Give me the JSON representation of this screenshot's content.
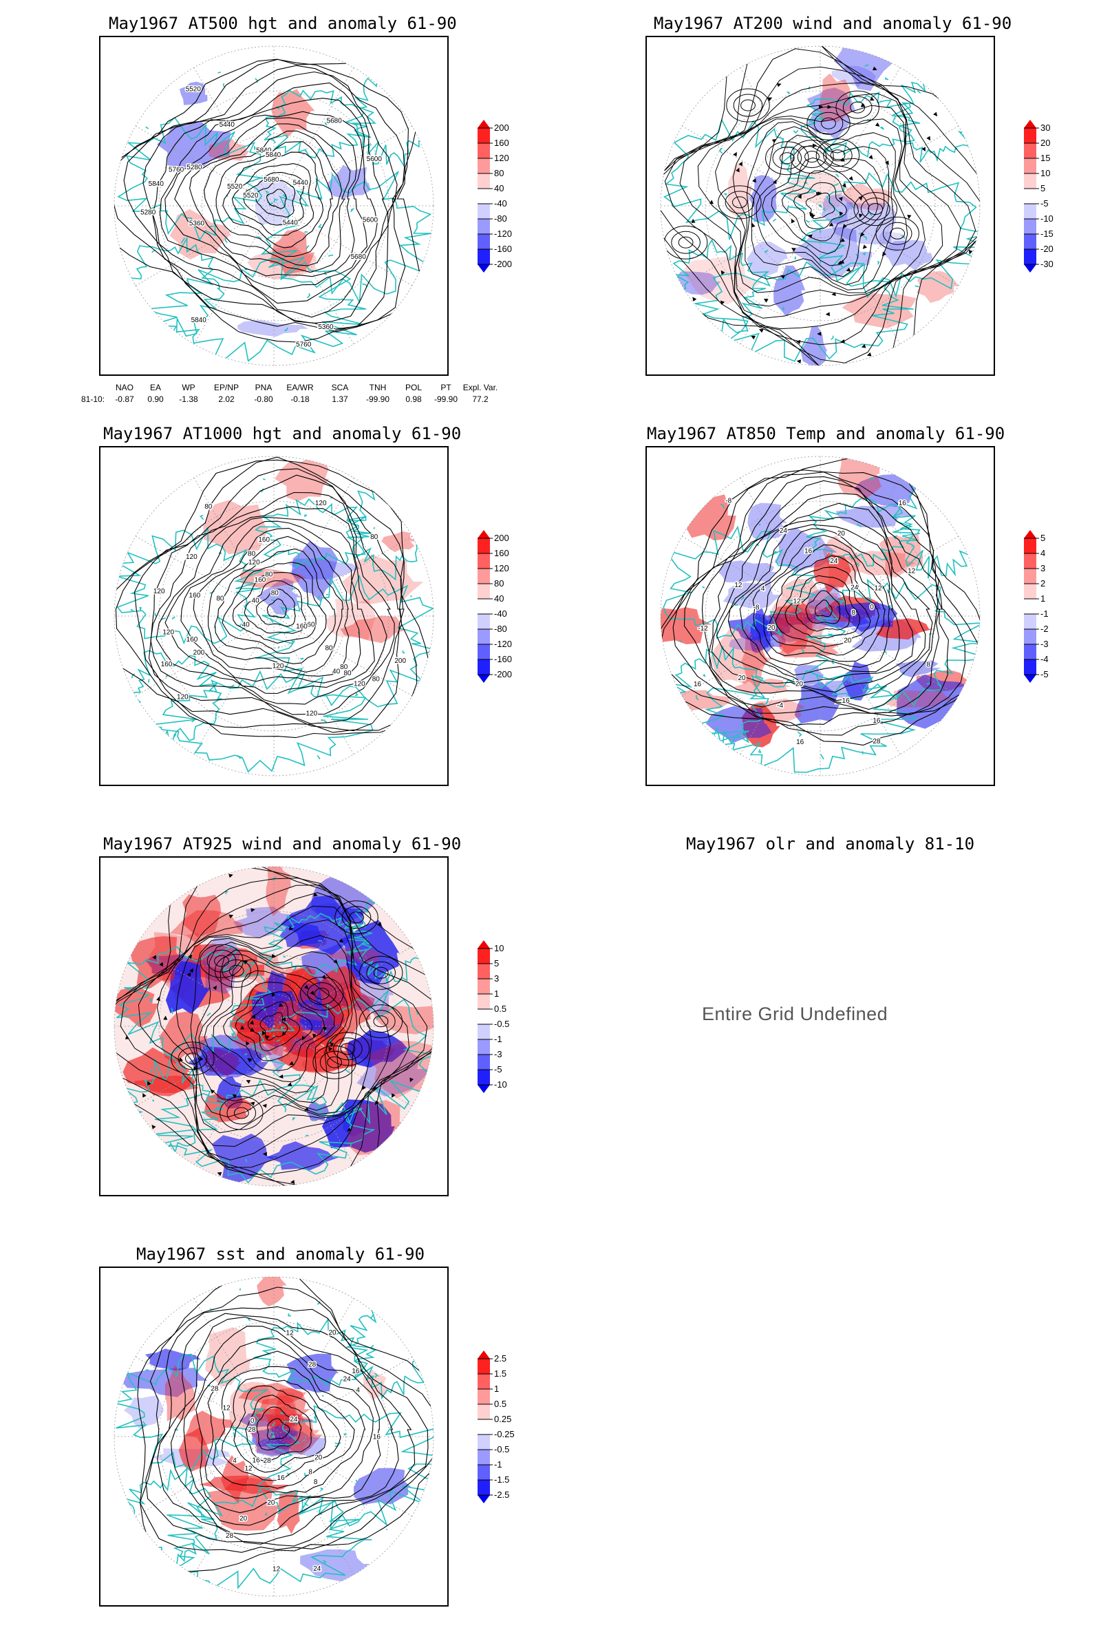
{
  "panels": [
    {
      "id": "p500",
      "title": "May1967 AT500 hgt and anomaly 61-90",
      "contours": [
        "5840",
        "5760",
        "5680",
        "5600",
        "5520",
        "5520",
        "5440",
        "5360",
        "5280",
        "5440",
        "5280",
        "5360",
        "5680",
        "5440",
        "5520",
        "5600",
        "5680",
        "5760",
        "5840",
        "5840",
        "5840"
      ],
      "colorbar": [
        "200",
        "160",
        "120",
        "80",
        "40",
        "-40",
        "-80",
        "-120",
        "-160",
        "-200"
      ]
    },
    {
      "id": "p200",
      "title": "May1967 AT200 wind and anomaly 61-90",
      "colorbar": [
        "30",
        "20",
        "15",
        "10",
        "5",
        "-5",
        "-10",
        "-15",
        "-20",
        "-30"
      ]
    },
    {
      "id": "p1000",
      "title": "May1967 AT1000 hgt and anomaly 61-90",
      "contours": [
        "80",
        "120",
        "120",
        "160",
        "160",
        "160",
        "200",
        "120",
        "80",
        "120",
        "80",
        "120",
        "160",
        "160",
        "40",
        "80",
        "120",
        "160",
        "80",
        "80",
        "40",
        "80",
        "120",
        "200",
        "160",
        "120",
        "80",
        "120",
        "40",
        "80",
        "80"
      ],
      "colorbar": [
        "200",
        "160",
        "120",
        "80",
        "40",
        "-40",
        "-80",
        "-120",
        "-160",
        "-200"
      ]
    },
    {
      "id": "p850",
      "title": "May1967 AT850 Temp and anomaly 61-90",
      "contours": [
        "16",
        "12",
        "8",
        "4",
        "0",
        "-4",
        "-8",
        "-12",
        "16",
        "20",
        "16",
        "12",
        "16",
        "20",
        "24",
        "-8",
        "12",
        "8",
        "12",
        "16",
        "20",
        "24",
        "28",
        "20",
        "24",
        "20",
        "16"
      ],
      "colorbar": [
        "5",
        "4",
        "3",
        "2",
        "1",
        "-1",
        "-2",
        "-3",
        "-4",
        "-5"
      ]
    },
    {
      "id": "p925",
      "title": "May1967 AT925 wind and anomaly 61-90",
      "colorbar": [
        "10",
        "5",
        "3",
        "1",
        "0.5",
        "-0.5",
        "-1",
        "-3",
        "-5",
        "-10"
      ]
    },
    {
      "id": "polr",
      "title": "May1967 olr and anomaly 81-10",
      "message": "Entire Grid Undefined"
    },
    {
      "id": "psst",
      "title": "May1967 sst and anomaly 61-90",
      "contours": [
        "28",
        "28",
        "24",
        "24",
        "20",
        "20",
        "16",
        "12",
        "8",
        "12",
        "16",
        "4",
        "0",
        "12",
        "16",
        "20",
        "8",
        "4",
        "12",
        "16",
        "20",
        "24",
        "28",
        "28",
        "28"
      ],
      "colorbar": [
        "2.5",
        "1.5",
        "1",
        "0.5",
        "0.25",
        "-0.25",
        "-0.5",
        "-1",
        "-1.5",
        "-2.5"
      ]
    }
  ],
  "indices": {
    "headers": [
      "NAO",
      "EA",
      "WP",
      "EP/NP",
      "PNA",
      "EA/WR",
      "SCA",
      "TNH",
      "POL",
      "PT",
      "Expl. Var."
    ],
    "row_label": "81-10:",
    "values": [
      "-0.87",
      "0.90",
      "-1.38",
      "2.02",
      "-0.80",
      "-0.18",
      "1.37",
      "-99.90",
      "0.98",
      "-99.90",
      "77.2"
    ]
  },
  "colors": {
    "positive": "#ee2222",
    "negative": "#2222ee",
    "coast": "#22c0c0",
    "contour": "#000000"
  }
}
